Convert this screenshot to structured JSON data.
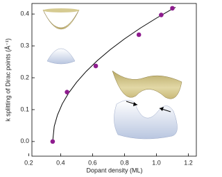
{
  "chart_data": {
    "type": "scatter",
    "x_label": "Dopant density (ML)",
    "y_label": "k splitting of Dirac points (Å⁻¹)",
    "x": [
      0.35,
      0.44,
      0.62,
      0.89,
      1.03,
      1.1
    ],
    "values": [
      0.0,
      0.155,
      0.237,
      0.335,
      0.397,
      0.418
    ],
    "color": "#8e1c8e",
    "fit": {
      "x": [
        0.35,
        0.36,
        0.38,
        0.41,
        0.45,
        0.5,
        0.56,
        0.63,
        0.71,
        0.8,
        0.9,
        1.0,
        1.1,
        1.12
      ],
      "values": [
        0.0,
        0.048,
        0.083,
        0.118,
        0.152,
        0.186,
        0.22,
        0.254,
        0.288,
        0.322,
        0.356,
        0.387,
        0.416,
        0.421
      ],
      "color": "#000000"
    },
    "xlim": [
      0.22,
      1.25
    ],
    "ylim": [
      -0.046,
      0.433
    ],
    "xticks": [
      0.2,
      0.4,
      0.6,
      0.8,
      {
        "value": 1,
        "label": "1.0"
      },
      1.2
    ],
    "yticks": [
      {
        "value": 0,
        "label": "0.0"
      },
      0.1,
      0.2,
      0.3,
      0.4
    ]
  }
}
